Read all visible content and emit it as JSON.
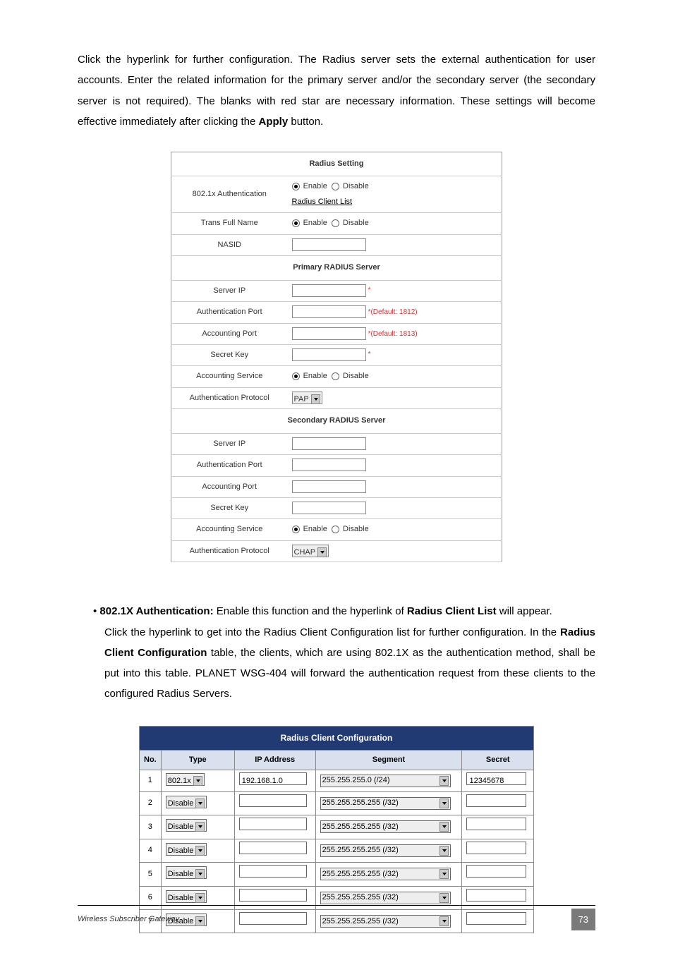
{
  "intro": {
    "pre": "Click the hyperlink for further configuration. The Radius server sets the external authentication for user accounts. Enter the related information for the primary server and/or the secondary server (the secondary server is not required). The blanks with red star are necessary information. These settings will become effective immediately after clicking the ",
    "bold": "Apply",
    "post": " button."
  },
  "radius": {
    "section_setting": "Radius Setting",
    "auth_label": "802.1x Authentication",
    "enable": "Enable",
    "disable": "Disable",
    "client_list_link": "Radius Client List",
    "trans_full_name": "Trans Full Name",
    "nasid": "NASID",
    "section_primary": "Primary RADIUS Server",
    "server_ip": "Server IP",
    "auth_port": "Authentication Port",
    "auth_port_hint": "*(Default: 1812)",
    "acct_port": "Accounting Port",
    "acct_port_hint": "*(Default: 1813)",
    "secret_key": "Secret Key",
    "acct_service": "Accounting Service",
    "auth_protocol": "Authentication Protocol",
    "pap": "PAP",
    "section_secondary": "Secondary RADIUS Server",
    "chap": "CHAP",
    "star": "*"
  },
  "bullet": {
    "l1a": "• ",
    "l1b": "802.1X Authentication:",
    "l1c": " Enable this function and the hyperlink of ",
    "l1d": "Radius Client List",
    "l1e": " will appear.",
    "rest1": "Click the hyperlink to get into the Radius Client Configuration list for further configuration. In the ",
    "rest_bold": "Radius Client Configuration",
    "rest2": " table, the clients, which are using 802.1X as the authentication method, shall be put into this table. PLANET WSG-404 will forward the authentication request from these clients to the configured Radius Servers."
  },
  "client": {
    "title": "Radius Client Configuration",
    "cols": {
      "no": "No.",
      "type": "Type",
      "ip": "IP Address",
      "seg": "Segment",
      "secret": "Secret"
    },
    "rows": [
      {
        "no": "1",
        "type": "802.1x",
        "ip": "192.168.1.0",
        "seg": "255.255.255.0 (/24)",
        "secret": "12345678"
      },
      {
        "no": "2",
        "type": "Disable",
        "ip": "",
        "seg": "255.255.255.255 (/32)",
        "secret": ""
      },
      {
        "no": "3",
        "type": "Disable",
        "ip": "",
        "seg": "255.255.255.255 (/32)",
        "secret": ""
      },
      {
        "no": "4",
        "type": "Disable",
        "ip": "",
        "seg": "255.255.255.255 (/32)",
        "secret": ""
      },
      {
        "no": "5",
        "type": "Disable",
        "ip": "",
        "seg": "255.255.255.255 (/32)",
        "secret": ""
      },
      {
        "no": "6",
        "type": "Disable",
        "ip": "",
        "seg": "255.255.255.255 (/32)",
        "secret": ""
      },
      {
        "no": "7",
        "type": "Disable",
        "ip": "",
        "seg": "255.255.255.255 (/32)",
        "secret": ""
      }
    ]
  },
  "footer": {
    "title": "Wireless Subscriber Gateway",
    "page": "73"
  }
}
